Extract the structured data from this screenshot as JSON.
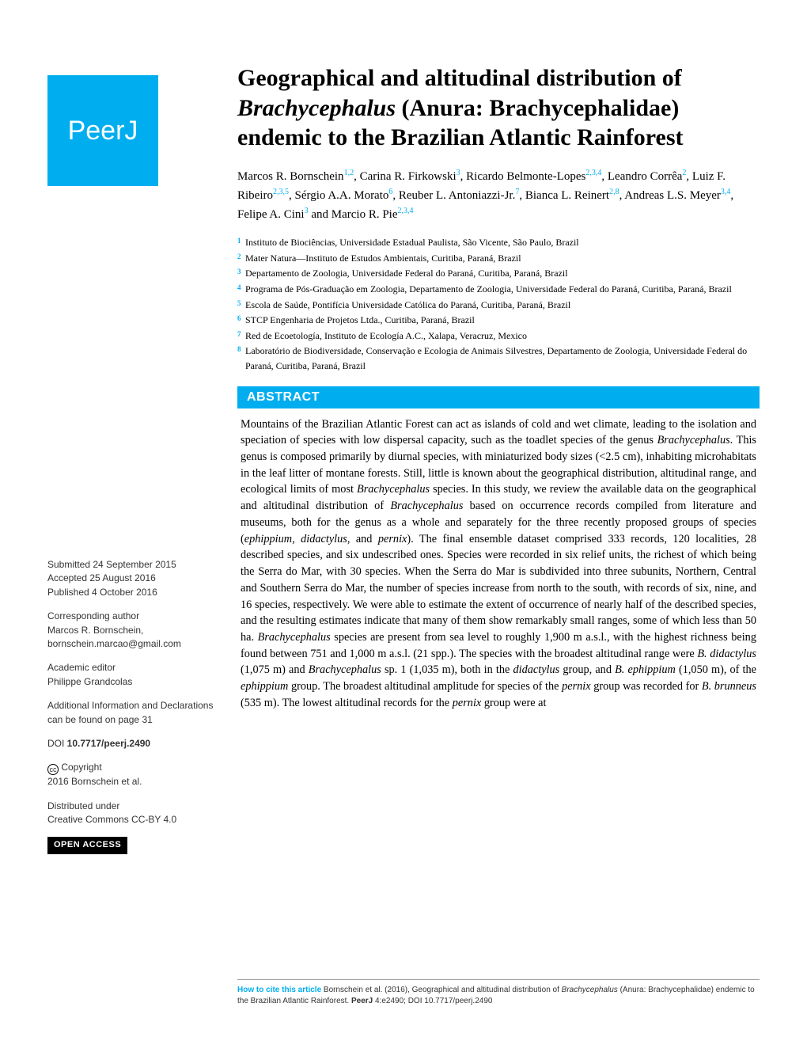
{
  "logo": {
    "text": "PeerJ"
  },
  "title": {
    "part1": "Geographical and altitudinal distribution of ",
    "italic1": "Brachycephalus",
    "part2": " (Anura: Brachycephalidae) endemic to the Brazilian Atlantic Rainforest"
  },
  "authors_html": "Marcos R. Bornschein<sup>1,2</sup>,  Carina R. Firkowski<sup>3</sup>,  Ricardo Belmonte-Lopes<sup>2,3,4</sup>, Leandro Corrêa<sup>2</sup>,  Luiz F. Ribeiro<sup>2,3,5</sup>,  Sérgio A.A. Morato<sup>6</sup>, Reuber L. Antoniazzi-Jr.<sup>7</sup>,  Bianca L. Reinert<sup>2,8</sup>,  Andreas L.S. Meyer<sup>3,4</sup>, Felipe A. Cini<sup>3</sup> and  Marcio R. Pie<sup>2,3,4</sup>",
  "affiliations": [
    {
      "num": "1",
      "text": "Instituto de Biociências, Universidade Estadual Paulista, São Vicente, São Paulo, Brazil"
    },
    {
      "num": "2",
      "text": "Mater Natura—Instituto de Estudos Ambientais, Curitiba, Paraná, Brazil"
    },
    {
      "num": "3",
      "text": "Departamento de Zoologia, Universidade Federal do Paraná, Curitiba, Paraná, Brazil"
    },
    {
      "num": "4",
      "text": "Programa de Pós-Graduação em Zoologia, Departamento de Zoologia, Universidade Federal do Paraná, Curitiba, Paraná, Brazil"
    },
    {
      "num": "5",
      "text": "Escola de Saúde, Pontifícia Universidade Católica do Paraná, Curitiba, Paraná, Brazil"
    },
    {
      "num": "6",
      "text": "STCP Engenharia de Projetos Ltda., Curitiba, Paraná, Brazil"
    },
    {
      "num": "7",
      "text": "Red de Ecoetología, Instituto de Ecología A.C., Xalapa, Veracruz, Mexico"
    },
    {
      "num": "8",
      "text": "Laboratório de Biodiversidade, Conservação e Ecologia de Animais Silvestres, Departamento de Zoologia, Universidade Federal do Paraná, Curitiba, Paraná, Brazil"
    }
  ],
  "abstract": {
    "header": "ABSTRACT",
    "body_html": "Mountains of the Brazilian Atlantic Forest can act as islands of cold and wet climate, leading to the isolation and speciation of species with low dispersal capacity, such as the toadlet species of the genus <span class=\"italic\">Brachycephalus</span>. This genus is composed primarily by diurnal species, with miniaturized body sizes (&lt;2.5 cm), inhabiting microhabitats in the leaf litter of montane forests. Still, little is known about the geographical distribution, altitudinal range, and ecological limits of most <span class=\"italic\">Brachycephalus</span> species. In this study, we review the available data on the geographical and altitudinal distribution of <span class=\"italic\">Brachycephalus</span> based on occurrence records compiled from literature and museums, both for the genus as a whole and separately for the three recently proposed groups of species (<span class=\"italic\">ephippium</span>, <span class=\"italic\">didactylus</span>, and <span class=\"italic\">pernix</span>). The final ensemble dataset comprised 333 records, 120 localities, 28 described species, and six undescribed ones. Species were recorded in six relief units, the richest of which being the Serra do Mar, with 30 species. When the Serra do Mar is subdivided into three subunits, Northern, Central and Southern Serra do Mar, the number of species increase from north to the south, with records of six, nine, and 16 species, respectively. We were able to estimate the extent of occurrence of nearly half of the described species, and the resulting estimates indicate that many of them show remarkably small ranges, some of which less than 50 ha. <span class=\"italic\">Brachycephalus</span> species are present from sea level to roughly 1,900 m a.s.l., with the highest richness being found between 751 and 1,000 m a.s.l. (21 spp.). The species with the broadest altitudinal range were <span class=\"italic\">B. didactylus</span> (1,075 m) and <span class=\"italic\">Brachycephalus</span> sp. 1 (1,035 m), both in the <span class=\"italic\">didactylus</span> group, and <span class=\"italic\">B. ephippium</span> (1,050 m), of the <span class=\"italic\">ephippium</span> group. The broadest altitudinal amplitude for species of the <span class=\"italic\">pernix</span> group was recorded for <span class=\"italic\">B. brunneus</span> (535 m). The lowest altitudinal records for the <span class=\"italic\">pernix</span> group were at"
  },
  "sidebar": {
    "submitted_label": "Submitted",
    "submitted_value": " 24 September 2015",
    "accepted_label": "Accepted",
    "accepted_value": "  25 August 2016",
    "published_label": "Published",
    "published_value": " 4 October 2016",
    "corresponding_label": "Corresponding author",
    "corresponding_value": "Marcos R. Bornschein, bornschein.marcao@gmail.com",
    "editor_label": "Academic editor",
    "editor_value": "Philippe Grandcolas",
    "additional_info": "Additional Information and Declarations can be found on page 31",
    "doi_label": "DOI",
    "doi_value": " 10.7717/peerj.2490",
    "copyright_label": " Copyright",
    "copyright_value": "2016 Bornschein et al.",
    "distributed_label": "Distributed under",
    "distributed_value": "Creative Commons CC-BY 4.0",
    "open_access": "OPEN ACCESS"
  },
  "citation": {
    "how": "How to cite this article",
    "text_html": " Bornschein et al. (2016), Geographical and altitudinal distribution of <span class=\"italic\">Brachycephalus</span> (Anura:  Brachycephalidae) endemic to the Brazilian Atlantic Rainforest. <span class=\"bold\">PeerJ</span> 4:e2490; DOI 10.7717/peerj.2490"
  },
  "colors": {
    "brand": "#00aeef",
    "text": "#000000",
    "sidebar_text": "#333333",
    "background": "#ffffff"
  }
}
